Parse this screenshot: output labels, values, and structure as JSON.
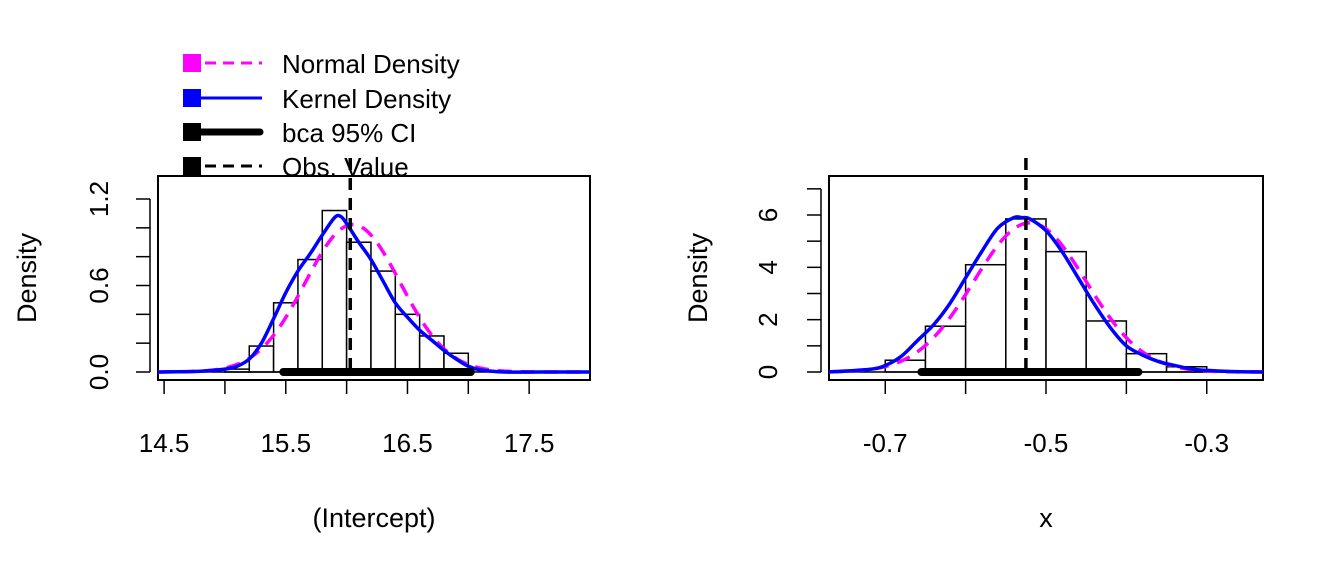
{
  "legend": {
    "entries": [
      {
        "label": "Normal Density",
        "color": "#FF00FF",
        "style": "dashed"
      },
      {
        "label": "Kernel Density",
        "color": "#0000FF",
        "style": "solid"
      },
      {
        "label": "bca 95% CI",
        "color": "#000000",
        "style": "thick"
      },
      {
        "label": "Obs. Value",
        "color": "#000000",
        "style": "dashed"
      }
    ]
  },
  "chart_data": [
    {
      "type": "histogram",
      "xlabel": "(Intercept)",
      "ylabel": "Density",
      "xlim": [
        14.45,
        18.0
      ],
      "ylim": [
        0,
        1.2
      ],
      "xticks": [
        "14.5",
        "15.5",
        "16.5",
        "17.5"
      ],
      "xtick_values": [
        14.5,
        15.5,
        16.5,
        17.5
      ],
      "minor_xticks": [
        15.0,
        16.0,
        17.0
      ],
      "yticks": [
        "0.0",
        "0.6",
        "1.2"
      ],
      "ytick_values": [
        0.0,
        0.6,
        1.2
      ],
      "minor_yticks": [
        0.2,
        0.4,
        0.8,
        1.0
      ],
      "bins": [
        {
          "start": 15.0,
          "end": 15.2,
          "density": 0.02
        },
        {
          "start": 15.2,
          "end": 15.4,
          "density": 0.18
        },
        {
          "start": 15.4,
          "end": 15.6,
          "density": 0.48
        },
        {
          "start": 15.6,
          "end": 15.8,
          "density": 0.78
        },
        {
          "start": 15.8,
          "end": 16.0,
          "density": 1.12
        },
        {
          "start": 16.0,
          "end": 16.2,
          "density": 0.9
        },
        {
          "start": 16.2,
          "end": 16.4,
          "density": 0.7
        },
        {
          "start": 16.4,
          "end": 16.6,
          "density": 0.4
        },
        {
          "start": 16.6,
          "end": 16.8,
          "density": 0.25
        },
        {
          "start": 16.8,
          "end": 17.0,
          "density": 0.13
        }
      ],
      "normal_density": {
        "mean": 16.05,
        "sd": 0.39
      },
      "kernel_density": {
        "x": [
          14.45,
          14.8,
          15.0,
          15.1,
          15.2,
          15.3,
          15.4,
          15.5,
          15.6,
          15.7,
          15.8,
          15.9,
          15.95,
          16.0,
          16.1,
          16.2,
          16.3,
          16.4,
          16.5,
          16.6,
          16.7,
          16.8,
          16.9,
          17.0,
          17.1,
          17.3,
          17.6,
          18.0
        ],
        "y": [
          0.0,
          0.005,
          0.02,
          0.04,
          0.09,
          0.2,
          0.37,
          0.55,
          0.7,
          0.82,
          0.95,
          1.07,
          1.08,
          1.03,
          0.9,
          0.78,
          0.63,
          0.48,
          0.38,
          0.29,
          0.22,
          0.15,
          0.09,
          0.04,
          0.015,
          0.0,
          0.0,
          0.0
        ]
      },
      "ci": [
        15.48,
        17.02
      ],
      "observed": 16.03
    },
    {
      "type": "histogram",
      "xlabel": "x",
      "ylabel": "Density",
      "xlim": [
        -0.77,
        -0.23
      ],
      "ylim": [
        0,
        7
      ],
      "xticks": [
        "-0.7",
        "-0.5",
        "-0.3"
      ],
      "xtick_values": [
        -0.7,
        -0.5,
        -0.3
      ],
      "minor_xticks": [
        -0.6,
        -0.4
      ],
      "yticks": [
        "0",
        "2",
        "4",
        "6"
      ],
      "ytick_values": [
        0,
        2,
        4,
        6
      ],
      "minor_yticks": [
        1,
        3,
        5,
        7
      ],
      "bins": [
        {
          "start": -0.7,
          "end": -0.65,
          "density": 0.45
        },
        {
          "start": -0.65,
          "end": -0.6,
          "density": 1.75
        },
        {
          "start": -0.6,
          "end": -0.55,
          "density": 4.1
        },
        {
          "start": -0.55,
          "end": -0.5,
          "density": 5.85
        },
        {
          "start": -0.5,
          "end": -0.45,
          "density": 4.6
        },
        {
          "start": -0.45,
          "end": -0.4,
          "density": 1.95
        },
        {
          "start": -0.4,
          "end": -0.35,
          "density": 0.7
        },
        {
          "start": -0.35,
          "end": -0.3,
          "density": 0.2
        }
      ],
      "normal_density": {
        "mean": -0.52,
        "sd": 0.07
      },
      "kernel_density": {
        "x": [
          -0.77,
          -0.72,
          -0.7,
          -0.68,
          -0.66,
          -0.64,
          -0.62,
          -0.6,
          -0.58,
          -0.56,
          -0.54,
          -0.53,
          -0.52,
          -0.5,
          -0.48,
          -0.46,
          -0.44,
          -0.42,
          -0.4,
          -0.38,
          -0.36,
          -0.34,
          -0.32,
          -0.3,
          -0.27,
          -0.23
        ],
        "y": [
          0.0,
          0.1,
          0.25,
          0.6,
          1.2,
          1.8,
          2.6,
          3.6,
          4.6,
          5.5,
          5.9,
          5.9,
          5.85,
          5.4,
          4.6,
          3.6,
          2.6,
          1.7,
          1.0,
          0.65,
          0.4,
          0.25,
          0.12,
          0.06,
          0.02,
          0.0
        ]
      },
      "ci": [
        -0.655,
        -0.385
      ],
      "observed": -0.525
    }
  ]
}
